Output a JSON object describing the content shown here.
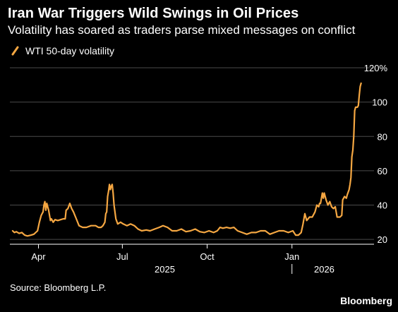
{
  "title": "Iran War Triggers Wild Swings in Oil Prices",
  "subtitle": "Volatility has soared as traders parse mixed messages on conflict",
  "source": "Source: Bloomberg L.P.",
  "brand": "Bloomberg",
  "colors": {
    "line": "#f5a742",
    "grid": "#4a4a4a",
    "axis": "#ffffff",
    "background": "#000000"
  },
  "chart_data": {
    "type": "line",
    "title": "Iran War Triggers Wild Swings in Oil Prices",
    "subtitle": "Volatility has soared as traders parse mixed messages on conflict",
    "ylabel": "",
    "ylim": [
      18,
      120
    ],
    "y_ticks": [
      {
        "value": 20,
        "label": "20"
      },
      {
        "value": 40,
        "label": "40"
      },
      {
        "value": 60,
        "label": "60"
      },
      {
        "value": 80,
        "label": "80"
      },
      {
        "value": 100,
        "label": "100"
      },
      {
        "value": 120,
        "label": "120%"
      }
    ],
    "x_ticks": [
      {
        "date": "2025-04-01",
        "label": "Apr"
      },
      {
        "date": "2025-07-01",
        "label": "Jul"
      },
      {
        "date": "2025-10-01",
        "label": "Oct"
      },
      {
        "date": "2026-01-01",
        "label": "Jan"
      }
    ],
    "year_labels": [
      {
        "date": "2025-08-16",
        "label": "2025"
      },
      {
        "date": "2026-02-05",
        "label": "2026"
      }
    ],
    "year_divider": "2026-01-01",
    "xlim": [
      "2025-03-01",
      "2026-03-31"
    ],
    "grid": true,
    "legend_position": "top-left",
    "series": [
      {
        "name": "WTI 50-day volatility",
        "color": "#f5a742",
        "points": [
          [
            "2025-03-04",
            25
          ],
          [
            "2025-03-06",
            24
          ],
          [
            "2025-03-08",
            24.5
          ],
          [
            "2025-03-11",
            23.5
          ],
          [
            "2025-03-14",
            24
          ],
          [
            "2025-03-17",
            22.5
          ],
          [
            "2025-03-20",
            22
          ],
          [
            "2025-03-24",
            22.5
          ],
          [
            "2025-03-27",
            23
          ],
          [
            "2025-03-31",
            25
          ],
          [
            "2025-04-02",
            30
          ],
          [
            "2025-04-04",
            34
          ],
          [
            "2025-04-06",
            36
          ],
          [
            "2025-04-07",
            40
          ],
          [
            "2025-04-08",
            42
          ],
          [
            "2025-04-09",
            37
          ],
          [
            "2025-04-10",
            41
          ],
          [
            "2025-04-12",
            37
          ],
          [
            "2025-04-14",
            31
          ],
          [
            "2025-04-15",
            32
          ],
          [
            "2025-04-17",
            30
          ],
          [
            "2025-04-19",
            31.5
          ],
          [
            "2025-04-22",
            31
          ],
          [
            "2025-04-25",
            31.5
          ],
          [
            "2025-04-28",
            32
          ],
          [
            "2025-04-30",
            32
          ],
          [
            "2025-05-01",
            37
          ],
          [
            "2025-05-03",
            38
          ],
          [
            "2025-05-05",
            41
          ],
          [
            "2025-05-07",
            38
          ],
          [
            "2025-05-09",
            36
          ],
          [
            "2025-05-12",
            32
          ],
          [
            "2025-05-15",
            28
          ],
          [
            "2025-05-19",
            27
          ],
          [
            "2025-05-23",
            27
          ],
          [
            "2025-05-28",
            28
          ],
          [
            "2025-06-02",
            28
          ],
          [
            "2025-06-05",
            27
          ],
          [
            "2025-06-08",
            27
          ],
          [
            "2025-06-10",
            28
          ],
          [
            "2025-06-12",
            30
          ],
          [
            "2025-06-13",
            35
          ],
          [
            "2025-06-14",
            36
          ],
          [
            "2025-06-15",
            45
          ],
          [
            "2025-06-16",
            48
          ],
          [
            "2025-06-17",
            52
          ],
          [
            "2025-06-18",
            49
          ],
          [
            "2025-06-19",
            51
          ],
          [
            "2025-06-20",
            52
          ],
          [
            "2025-06-21",
            47
          ],
          [
            "2025-06-22",
            40
          ],
          [
            "2025-06-23",
            36
          ],
          [
            "2025-06-24",
            32
          ],
          [
            "2025-06-26",
            29
          ],
          [
            "2025-06-29",
            30
          ],
          [
            "2025-07-02",
            29
          ],
          [
            "2025-07-06",
            28
          ],
          [
            "2025-07-10",
            29
          ],
          [
            "2025-07-14",
            28
          ],
          [
            "2025-07-18",
            26
          ],
          [
            "2025-07-22",
            25
          ],
          [
            "2025-07-27",
            25.5
          ],
          [
            "2025-07-31",
            25
          ],
          [
            "2025-08-05",
            26
          ],
          [
            "2025-08-10",
            27
          ],
          [
            "2025-08-14",
            28
          ],
          [
            "2025-08-19",
            27
          ],
          [
            "2025-08-24",
            25
          ],
          [
            "2025-08-29",
            25
          ],
          [
            "2025-09-03",
            26
          ],
          [
            "2025-09-08",
            24.5
          ],
          [
            "2025-09-13",
            25
          ],
          [
            "2025-09-18",
            26
          ],
          [
            "2025-09-23",
            24.5
          ],
          [
            "2025-09-28",
            24
          ],
          [
            "2025-10-03",
            25
          ],
          [
            "2025-10-08",
            24
          ],
          [
            "2025-10-12",
            25
          ],
          [
            "2025-10-15",
            27
          ],
          [
            "2025-10-18",
            26.5
          ],
          [
            "2025-10-22",
            27
          ],
          [
            "2025-10-26",
            26.5
          ],
          [
            "2025-10-30",
            27
          ],
          [
            "2025-11-03",
            25
          ],
          [
            "2025-11-08",
            24
          ],
          [
            "2025-11-13",
            23
          ],
          [
            "2025-11-18",
            24
          ],
          [
            "2025-11-23",
            24
          ],
          [
            "2025-11-28",
            25
          ],
          [
            "2025-12-03",
            25
          ],
          [
            "2025-12-08",
            23
          ],
          [
            "2025-12-13",
            24
          ],
          [
            "2025-12-18",
            25
          ],
          [
            "2025-12-23",
            25
          ],
          [
            "2025-12-28",
            24
          ],
          [
            "2026-01-02",
            25
          ],
          [
            "2026-01-05",
            22.5
          ],
          [
            "2026-01-08",
            22.5
          ],
          [
            "2026-01-11",
            24
          ],
          [
            "2026-01-13",
            29
          ],
          [
            "2026-01-15",
            35
          ],
          [
            "2026-01-17",
            31
          ],
          [
            "2026-01-20",
            33
          ],
          [
            "2026-01-23",
            33
          ],
          [
            "2026-01-26",
            36
          ],
          [
            "2026-01-28",
            40
          ],
          [
            "2026-01-30",
            39
          ],
          [
            "2026-01-31",
            41
          ],
          [
            "2026-02-01",
            41
          ],
          [
            "2026-02-02",
            44
          ],
          [
            "2026-02-03",
            47
          ],
          [
            "2026-02-04",
            44
          ],
          [
            "2026-02-05",
            47
          ],
          [
            "2026-02-07",
            43
          ],
          [
            "2026-02-09",
            40
          ],
          [
            "2026-02-11",
            42
          ],
          [
            "2026-02-13",
            39
          ],
          [
            "2026-02-15",
            38
          ],
          [
            "2026-02-17",
            39
          ],
          [
            "2026-02-19",
            33
          ],
          [
            "2026-02-22",
            33
          ],
          [
            "2026-02-24",
            34
          ],
          [
            "2026-02-25",
            43
          ],
          [
            "2026-02-27",
            45
          ],
          [
            "2026-03-01",
            44
          ],
          [
            "2026-03-02",
            46
          ],
          [
            "2026-03-04",
            49
          ],
          [
            "2026-03-05",
            52
          ],
          [
            "2026-03-06",
            56
          ],
          [
            "2026-03-07",
            68
          ],
          [
            "2026-03-08",
            72
          ],
          [
            "2026-03-09",
            80
          ],
          [
            "2026-03-10",
            95
          ],
          [
            "2026-03-11",
            97
          ],
          [
            "2026-03-13",
            97
          ],
          [
            "2026-03-14",
            98
          ],
          [
            "2026-03-15",
            104
          ],
          [
            "2026-03-16",
            109
          ],
          [
            "2026-03-17",
            111
          ]
        ]
      }
    ]
  }
}
